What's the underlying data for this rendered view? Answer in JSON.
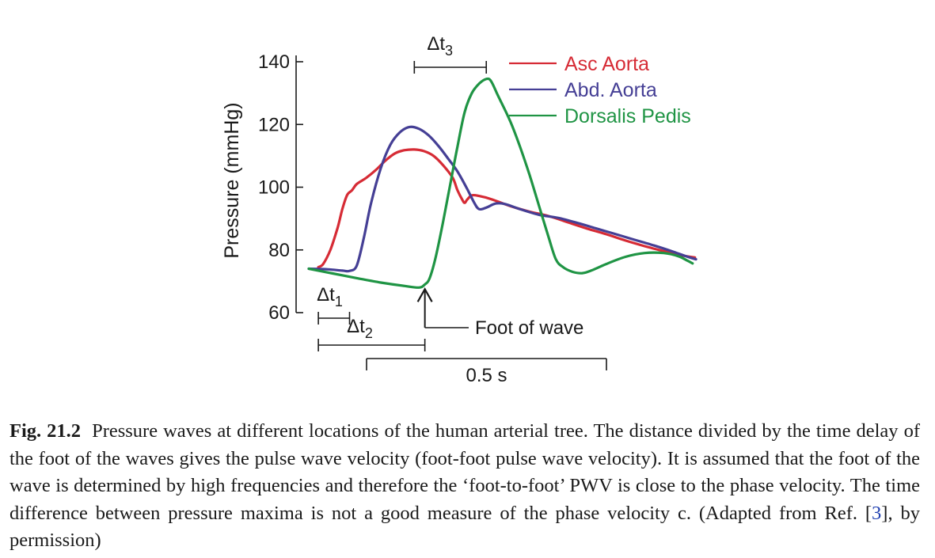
{
  "chart_data": {
    "type": "line",
    "ylabel": "Pressure (mmHg)",
    "xlabel": "",
    "ylim": [
      60,
      140
    ],
    "yticks": [
      60,
      80,
      100,
      120,
      140
    ],
    "xlim": [
      0,
      0.83
    ],
    "x_unit": "s",
    "legend_position": "top-right",
    "grid": false,
    "series": [
      {
        "name": "Asc Aorta",
        "color": "#d62b35",
        "points": [
          [
            0.02,
            74.5
          ],
          [
            0.03,
            75.5
          ],
          [
            0.045,
            80
          ],
          [
            0.06,
            87
          ],
          [
            0.07,
            93
          ],
          [
            0.08,
            97.5
          ],
          [
            0.09,
            99
          ],
          [
            0.1,
            101
          ],
          [
            0.12,
            103
          ],
          [
            0.14,
            105.5
          ],
          [
            0.16,
            108.5
          ],
          [
            0.18,
            110.8
          ],
          [
            0.2,
            111.8
          ],
          [
            0.22,
            112
          ],
          [
            0.24,
            111.5
          ],
          [
            0.26,
            110
          ],
          [
            0.28,
            107
          ],
          [
            0.3,
            103
          ],
          [
            0.31,
            99
          ],
          [
            0.32,
            96
          ],
          [
            0.325,
            95
          ],
          [
            0.33,
            96
          ],
          [
            0.34,
            97.4
          ],
          [
            0.355,
            97.2
          ],
          [
            0.38,
            96.2
          ],
          [
            0.42,
            94
          ],
          [
            0.46,
            92.2
          ],
          [
            0.5,
            90.8
          ],
          [
            0.54,
            88.8
          ],
          [
            0.58,
            86.8
          ],
          [
            0.62,
            85
          ],
          [
            0.66,
            83
          ],
          [
            0.7,
            81.2
          ],
          [
            0.74,
            79.6
          ],
          [
            0.78,
            78.2
          ],
          [
            0.805,
            77.6
          ]
        ]
      },
      {
        "name": "Abd. Aorta",
        "color": "#453f95",
        "points": [
          [
            0.0,
            74
          ],
          [
            0.04,
            73.8
          ],
          [
            0.07,
            73.4
          ],
          [
            0.085,
            73.3
          ],
          [
            0.1,
            75
          ],
          [
            0.115,
            84
          ],
          [
            0.13,
            95
          ],
          [
            0.15,
            106
          ],
          [
            0.17,
            113.5
          ],
          [
            0.19,
            117.5
          ],
          [
            0.21,
            119.2
          ],
          [
            0.23,
            118.6
          ],
          [
            0.25,
            116.5
          ],
          [
            0.27,
            113.2
          ],
          [
            0.29,
            109.2
          ],
          [
            0.31,
            105
          ],
          [
            0.33,
            99.5
          ],
          [
            0.345,
            95
          ],
          [
            0.355,
            93
          ],
          [
            0.37,
            93.5
          ],
          [
            0.39,
            94.8
          ],
          [
            0.41,
            94.6
          ],
          [
            0.44,
            93
          ],
          [
            0.48,
            91.2
          ],
          [
            0.52,
            90.2
          ],
          [
            0.56,
            88.6
          ],
          [
            0.6,
            86.8
          ],
          [
            0.64,
            85
          ],
          [
            0.68,
            83.2
          ],
          [
            0.72,
            81.4
          ],
          [
            0.76,
            79.4
          ],
          [
            0.79,
            77.8
          ],
          [
            0.807,
            77
          ]
        ]
      },
      {
        "name": "Dorsalis Pedis",
        "color": "#1f9444",
        "points": [
          [
            0.0,
            74
          ],
          [
            0.05,
            72.5
          ],
          [
            0.1,
            71
          ],
          [
            0.15,
            69.6
          ],
          [
            0.2,
            68.5
          ],
          [
            0.23,
            68
          ],
          [
            0.242,
            69
          ],
          [
            0.252,
            71
          ],
          [
            0.265,
            78
          ],
          [
            0.28,
            89
          ],
          [
            0.295,
            101
          ],
          [
            0.31,
            113
          ],
          [
            0.325,
            124
          ],
          [
            0.34,
            130
          ],
          [
            0.355,
            133
          ],
          [
            0.37,
            134.5
          ],
          [
            0.38,
            133.8
          ],
          [
            0.395,
            129
          ],
          [
            0.42,
            121
          ],
          [
            0.44,
            113
          ],
          [
            0.46,
            104
          ],
          [
            0.48,
            94
          ],
          [
            0.5,
            84
          ],
          [
            0.515,
            77
          ],
          [
            0.53,
            74.5
          ],
          [
            0.55,
            73
          ],
          [
            0.57,
            72.6
          ],
          [
            0.59,
            73.5
          ],
          [
            0.62,
            75.5
          ],
          [
            0.66,
            77.8
          ],
          [
            0.7,
            79
          ],
          [
            0.74,
            79
          ],
          [
            0.77,
            78
          ],
          [
            0.79,
            76.5
          ],
          [
            0.8,
            75.7
          ]
        ]
      }
    ],
    "annotations": {
      "delta_t1": {
        "label": "Δt",
        "sub": "1",
        "x_start": 0.02,
        "x_end": 0.085
      },
      "delta_t2": {
        "label": "Δt",
        "sub": "2",
        "x_start": 0.02,
        "x_end": 0.242
      },
      "delta_t3": {
        "label": "Δt",
        "sub": "3",
        "x_start": 0.22,
        "x_end": 0.37
      },
      "foot_of_wave": {
        "label": "Foot of wave",
        "x": 0.242,
        "y": 68
      },
      "scale_bar": {
        "label": "0.5 s",
        "duration": 0.5
      }
    }
  },
  "caption": {
    "label": "Fig. 21.2",
    "text_before_ref": "Pressure waves at different locations of the human arterial tree. The distance divided by the time delay of the foot of the waves gives the pulse wave velocity (foot-foot pulse wave velocity). It is assumed that the foot of the wave is determined by high frequencies and therefore the ‘foot-to-foot’ PWV is close to the phase velocity. The time difference between pressure maxima is not a good measure of the phase velocity c. (Adapted from Ref. [",
    "ref": "3",
    "text_after_ref": "], by permission)"
  }
}
